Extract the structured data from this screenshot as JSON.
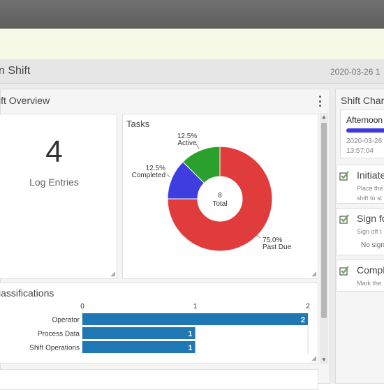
{
  "header": {
    "title": "n Shift",
    "timestamp": "2020-03-26 1"
  },
  "overview": {
    "title": "ift Overview",
    "log_entries": {
      "count": "4",
      "label": "Log Entries"
    },
    "tasks_title": "Tasks",
    "classifications_title": "lassifications",
    "next_card_title": "..."
  },
  "chart_data": [
    {
      "type": "pie",
      "variant": "donut",
      "title": "Tasks",
      "center_value": "8",
      "center_label": "Total",
      "slices": [
        {
          "label": "Past Due",
          "value": 6,
          "percent": "75.0%",
          "color": "#e03c3c"
        },
        {
          "label": "Completed",
          "value": 1,
          "percent": "12.5%",
          "color": "#3d3de0"
        },
        {
          "label": "Active",
          "value": 1,
          "percent": "12.5%",
          "color": "#2ca02c"
        }
      ]
    },
    {
      "type": "bar",
      "orientation": "horizontal",
      "title": "lassifications",
      "categories": [
        "Operator",
        "Process Data",
        "Shift Operations"
      ],
      "values": [
        2,
        1,
        1
      ],
      "xlim": [
        0,
        2
      ],
      "xticks": [
        "0",
        "1",
        "2"
      ],
      "color": "#1f77b4"
    }
  ],
  "shift_changes": {
    "title": "Shift Char",
    "shift": {
      "name": "Afternoon",
      "date": "2020-03-26",
      "time": "13:57:04",
      "color": "#3b3be0"
    }
  },
  "tasks": [
    {
      "title": "Initiate",
      "line1": "Place the",
      "line2": "shift to st"
    },
    {
      "title": "Sign fo",
      "line1": "Sign off t",
      "extra": "No sign"
    },
    {
      "title": "Compl",
      "line1": "Mark the"
    }
  ],
  "colors": {
    "check": "#6aa84f"
  }
}
